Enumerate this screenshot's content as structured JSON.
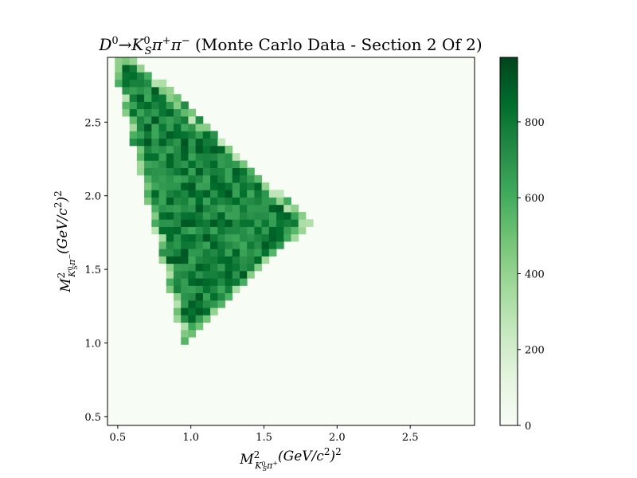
{
  "chart_data": {
    "type": "heatmap",
    "title": "D⁰→K⁰ₛπ⁺π⁻ (Monte Carlo Data - Section 2 Of 2)",
    "xlabel": "M²(K⁰ₛπ⁺) (GeV/c²)²",
    "ylabel": "M²(K⁰ₛπ⁻) (GeV/c²)²",
    "xlim": [
      0.43,
      2.94
    ],
    "ylim": [
      0.44,
      2.94
    ],
    "x_ticks": [
      0.5,
      1.0,
      1.5,
      2.0,
      2.5
    ],
    "x_tick_labels": [
      "0.5",
      "1.0",
      "1.5",
      "2.0",
      "2.5"
    ],
    "y_ticks": [
      0.5,
      1.0,
      1.5,
      2.0,
      2.5
    ],
    "y_tick_labels": [
      "0.5",
      "1.0",
      "1.5",
      "2.0",
      "2.5"
    ],
    "bins": 50,
    "colormap": "Greens",
    "colorbar": {
      "min": 0,
      "max": 970,
      "ticks": [
        0,
        200,
        400,
        600,
        800
      ],
      "tick_labels": [
        "0",
        "200",
        "400",
        "600",
        "800"
      ]
    },
    "region": {
      "description": "Dalitz-plot kinematic boundary filled with counts",
      "vertices": [
        [
          0.45,
          2.94
        ],
        [
          0.62,
          2.94
        ],
        [
          1.82,
          1.82
        ],
        [
          0.95,
          0.98
        ]
      ],
      "typical_count": 770,
      "count_range": [
        560,
        930
      ]
    },
    "colors": {
      "background_min": "#f7fcf5",
      "high": "#00441b"
    }
  }
}
